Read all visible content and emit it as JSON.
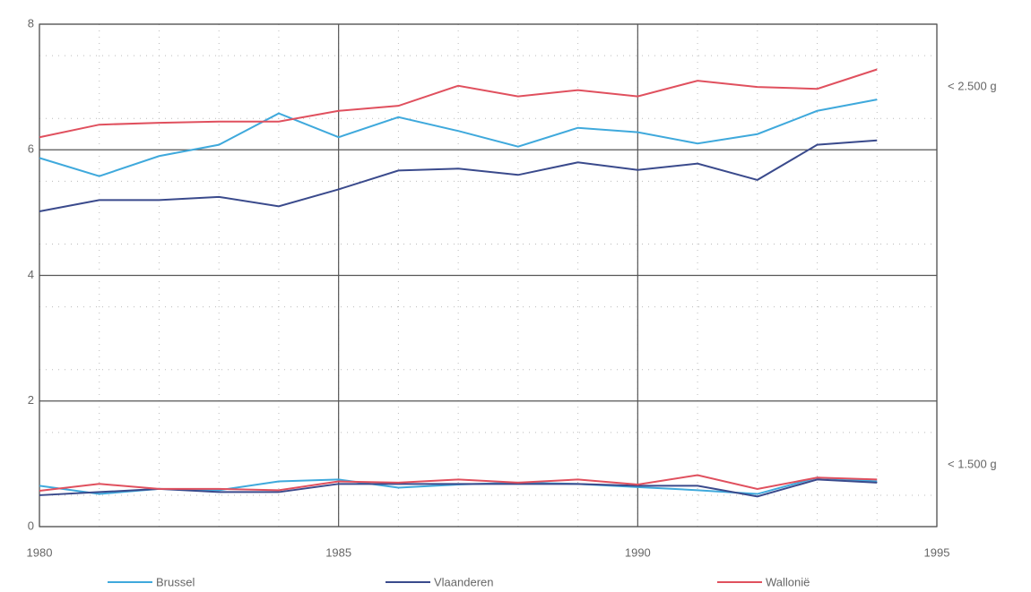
{
  "chart_data": {
    "type": "line",
    "x": [
      1980,
      1981,
      1982,
      1983,
      1984,
      1985,
      1986,
      1987,
      1988,
      1989,
      1990,
      1991,
      1992,
      1993,
      1994
    ],
    "xlim": [
      1980,
      1995
    ],
    "xticks": [
      1980,
      1985,
      1990,
      1995
    ],
    "ylim": [
      0,
      8
    ],
    "yticks": [
      0,
      2,
      4,
      6,
      8
    ],
    "grid": true,
    "annotations": [
      "< 2.500 g",
      "< 1.500 g"
    ],
    "series": [
      {
        "name": "Brussel",
        "color": "#3fa9dc",
        "values_lt2500": [
          5.87,
          5.58,
          5.9,
          6.08,
          6.58,
          6.2,
          6.52,
          6.3,
          6.05,
          6.35,
          6.28,
          6.1,
          6.25,
          6.62,
          6.8
        ],
        "values_lt1500": [
          0.65,
          0.52,
          0.6,
          0.58,
          0.72,
          0.75,
          0.62,
          0.67,
          0.7,
          0.68,
          0.63,
          0.58,
          0.52,
          0.78,
          0.72
        ]
      },
      {
        "name": "Vlaanderen",
        "color": "#3a4a8c",
        "values_lt2500": [
          5.02,
          5.2,
          5.2,
          5.25,
          5.1,
          5.37,
          5.67,
          5.7,
          5.6,
          5.8,
          5.68,
          5.78,
          5.52,
          6.08,
          6.15
        ],
        "values_lt1500": [
          0.5,
          0.55,
          0.6,
          0.55,
          0.55,
          0.68,
          0.68,
          0.68,
          0.68,
          0.68,
          0.65,
          0.65,
          0.48,
          0.75,
          0.7
        ]
      },
      {
        "name": "Wallonië",
        "color": "#e0505e",
        "values_lt2500": [
          6.2,
          6.4,
          6.43,
          6.45,
          6.45,
          6.62,
          6.7,
          7.02,
          6.85,
          6.95,
          6.85,
          7.1,
          7.0,
          6.97,
          7.28
        ],
        "values_lt1500": [
          0.57,
          0.68,
          0.6,
          0.6,
          0.58,
          0.72,
          0.7,
          0.75,
          0.7,
          0.75,
          0.67,
          0.82,
          0.6,
          0.78,
          0.75
        ]
      }
    ]
  }
}
